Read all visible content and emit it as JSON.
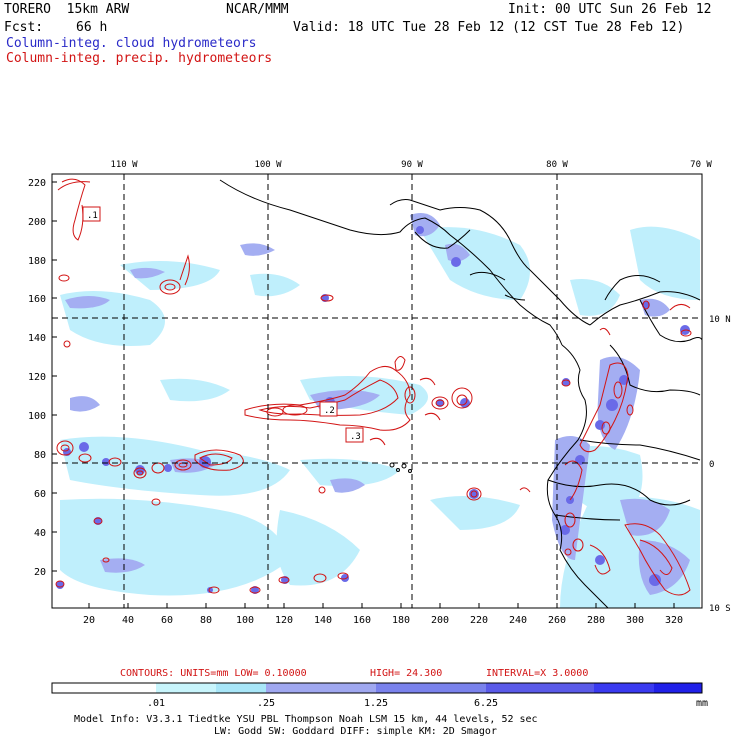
{
  "header": {
    "model": "TORERO  15km ARW",
    "center": "NCAR/MMM",
    "init": "Init: 00 UTC Sun 26 Feb 12",
    "fcst_label": "Fcst:",
    "fcst_value": "66 h",
    "valid": "Valid: 18 UTC Tue 28 Feb 12 (12 CST Tue 28 Feb 12)",
    "field1": "Column-integ. cloud hydrometeors",
    "field2": "Column-integ. precip. hydrometeors"
  },
  "map": {
    "lon_labels": [
      "110 W",
      "100 W",
      "90 W",
      "80 W",
      "70 W"
    ],
    "lat_labels": [
      "10 N",
      "0",
      "10 S"
    ],
    "y_ticks": [
      "220",
      "200",
      "180",
      "160",
      "140",
      "120",
      "100",
      "80",
      "60",
      "40",
      "20"
    ],
    "x_ticks": [
      "20",
      "40",
      "60",
      "80",
      "100",
      "120",
      "140",
      "160",
      "180",
      "200",
      "220",
      "240",
      "260",
      "280",
      "300",
      "320"
    ],
    "contour_labels": [
      ".1",
      ".2",
      ".3"
    ],
    "colors": {
      "cloud_light": "#bfeffc",
      "cloud_mid": "#9aa9f0",
      "cloud_dark": "#6464e6",
      "precip": "#d21414",
      "border": "#000000"
    }
  },
  "contours_info": {
    "units": "CONTOURS:  UNITS=mm  LOW= 0.10000",
    "high": "HIGH=  24.300",
    "interval": "INTERVAL=X  3.0000"
  },
  "legend": {
    "unit": "mm",
    "ticks": [
      ".01",
      ".25",
      "1.25",
      "6.25"
    ],
    "colors": [
      "#ffffff",
      "#c8f5fc",
      "#a8e6f8",
      "#a0a8f0",
      "#7a82ec",
      "#5a5ae8",
      "#3a3af0",
      "#2020e8"
    ]
  },
  "footer": {
    "line1": "Model Info: V3.3.1   Tiedtke YSU PBL  Thompson    Noah LSM  15 km,   44 levels,   52 sec",
    "line2": "LW: Godd SW: Goddard DIFF: simple KM: 2D Smagor"
  }
}
